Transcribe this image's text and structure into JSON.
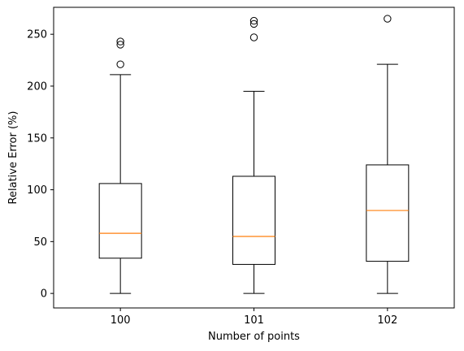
{
  "chart_data": {
    "type": "box",
    "title": "",
    "xlabel": "Number of points",
    "ylabel": "Relative Error (%)",
    "ylim": [
      -14,
      276
    ],
    "y_ticks": [
      0,
      50,
      100,
      150,
      200,
      250
    ],
    "categories": [
      "100",
      "101",
      "102"
    ],
    "boxes": [
      {
        "category": "100",
        "whisker_low": 0,
        "q1": 34,
        "median": 58,
        "q3": 106,
        "whisker_high": 211,
        "outliers": [
          221,
          240,
          243
        ]
      },
      {
        "category": "101",
        "whisker_low": 0,
        "q1": 28,
        "median": 55,
        "q3": 113,
        "whisker_high": 195,
        "outliers": [
          247,
          260,
          263
        ]
      },
      {
        "category": "102",
        "whisker_low": 0,
        "q1": 31,
        "median": 80,
        "q3": 124,
        "whisker_high": 221,
        "outliers": [
          265
        ]
      }
    ],
    "grid": false,
    "colors": {
      "box": "#000000",
      "median": "#ff7f0e",
      "outlier": "#000000"
    }
  }
}
